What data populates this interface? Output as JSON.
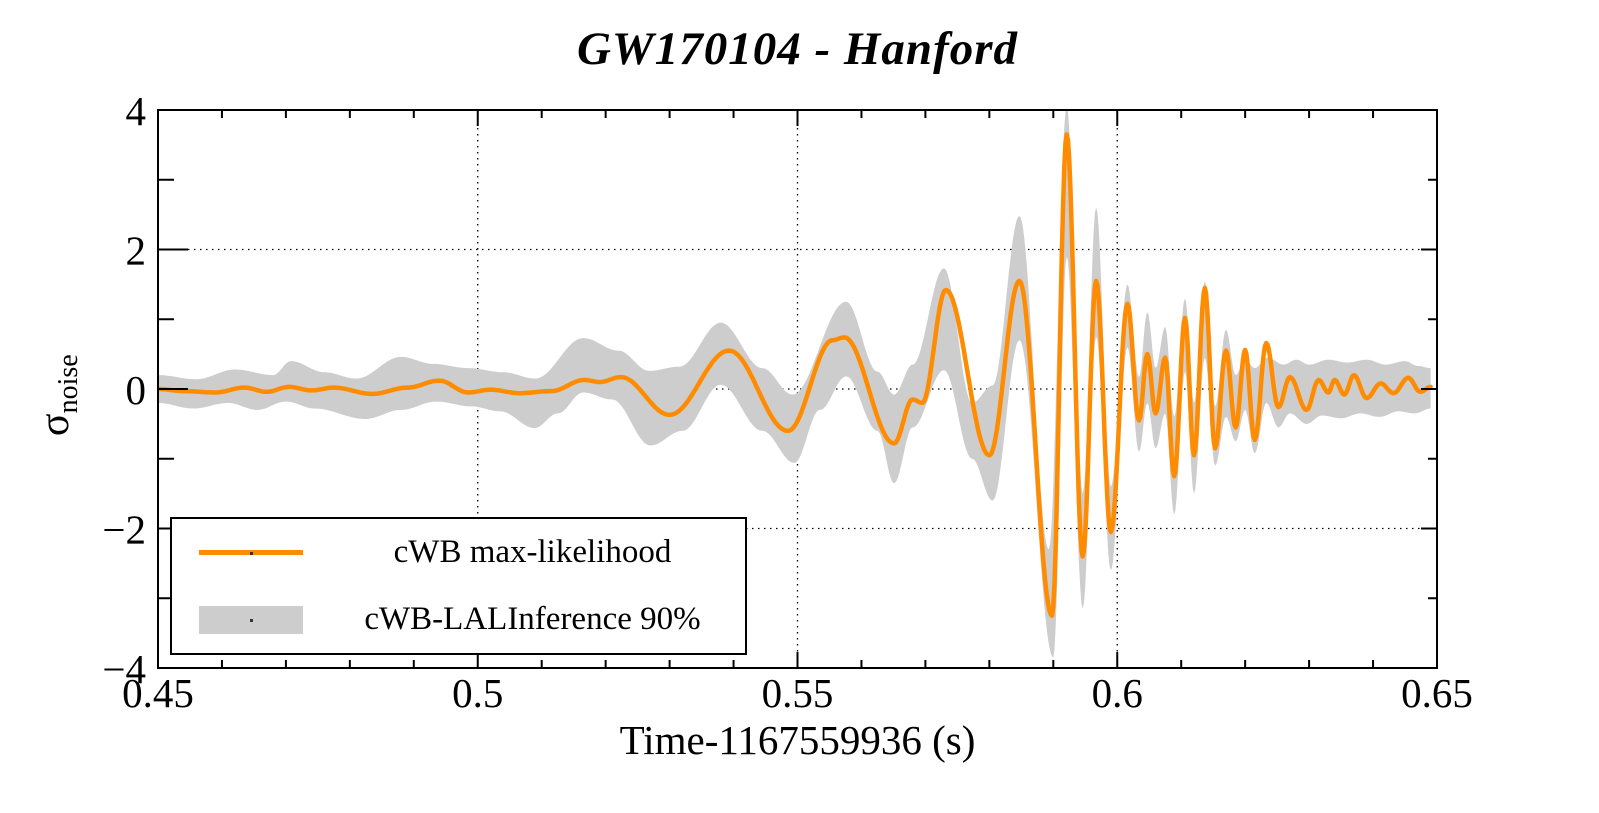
{
  "figure": {
    "title": "GW170104 - Hanford"
  },
  "axes": {
    "x": {
      "title": "Time-1167559936 (s)",
      "range": [
        0.45,
        0.65
      ],
      "major_ticks": [
        {
          "v": 0.45,
          "label": "0.45"
        },
        {
          "v": 0.5,
          "label": "0.5"
        },
        {
          "v": 0.55,
          "label": "0.55"
        },
        {
          "v": 0.6,
          "label": "0.6"
        },
        {
          "v": 0.65,
          "label": "0.65"
        }
      ],
      "minor_step": 0.01,
      "grid_values": [
        0.5,
        0.55,
        0.6
      ]
    },
    "y": {
      "title_symbol": "σ",
      "title_subscript": "noise",
      "range": [
        -4,
        4
      ],
      "major_ticks": [
        {
          "v": 4,
          "label": "4"
        },
        {
          "v": 2,
          "label": "2"
        },
        {
          "v": 0,
          "label": "0"
        },
        {
          "v": -2,
          "label": "−2"
        },
        {
          "v": -4,
          "label": "−4"
        }
      ],
      "minor_step": 1,
      "grid_values": [
        2,
        0,
        -2
      ]
    }
  },
  "legend": {
    "entries": [
      {
        "swatch": "line",
        "color": "#ff8c00",
        "label": "cWB max-likelihood"
      },
      {
        "swatch": "band",
        "color": "#cdcdcd",
        "label": "cWB-LALInference 90%"
      }
    ]
  },
  "colors": {
    "waveform": "#ff8c00",
    "band": "#cdcdcd",
    "axis": "#000000",
    "grid": "#000000",
    "background": "#ffffff"
  },
  "chart_data": {
    "type": "line",
    "title": "GW170104 - Hanford",
    "xlabel": "Time-1167559936 (s)",
    "ylabel": "sigma_noise",
    "x_range": [
      0.45,
      0.65
    ],
    "y_range": [
      -4,
      4
    ],
    "grid": "dotted",
    "legend_position": "bottom-left",
    "representation": "extrema pairs [t_seconds, amplitude_in_noise_sigma]; curve passes smoothly through these points",
    "series": [
      {
        "name": "cWB max-likelihood",
        "style": "line",
        "color": "#ff8c00",
        "extrema": [
          [
            0.45,
            0.0
          ],
          [
            0.454,
            -0.03
          ],
          [
            0.459,
            -0.05
          ],
          [
            0.4635,
            0.02
          ],
          [
            0.467,
            -0.04
          ],
          [
            0.4705,
            0.03
          ],
          [
            0.474,
            -0.02
          ],
          [
            0.4775,
            0.02
          ],
          [
            0.4835,
            -0.07
          ],
          [
            0.489,
            0.02
          ],
          [
            0.494,
            0.12
          ],
          [
            0.4985,
            -0.05
          ],
          [
            0.502,
            -0.01
          ],
          [
            0.5065,
            -0.06
          ],
          [
            0.5115,
            -0.03
          ],
          [
            0.5167,
            0.13
          ],
          [
            0.519,
            0.1
          ],
          [
            0.5224,
            0.17
          ],
          [
            0.53,
            -0.37
          ],
          [
            0.5393,
            0.55
          ],
          [
            0.5485,
            -0.6
          ],
          [
            0.5555,
            0.7
          ],
          [
            0.5573,
            0.74
          ],
          [
            0.5651,
            -0.78
          ],
          [
            0.568,
            -0.15
          ],
          [
            0.5695,
            -0.2
          ],
          [
            0.5732,
            1.42
          ],
          [
            0.58,
            -0.95
          ],
          [
            0.5847,
            1.55
          ],
          [
            0.5898,
            -3.25
          ],
          [
            0.5921,
            3.65
          ],
          [
            0.5946,
            -2.4
          ],
          [
            0.5967,
            1.55
          ],
          [
            0.599,
            -2.05
          ],
          [
            0.6016,
            1.22
          ],
          [
            0.6034,
            -0.45
          ],
          [
            0.6047,
            0.5
          ],
          [
            0.606,
            -0.35
          ],
          [
            0.6075,
            0.45
          ],
          [
            0.6089,
            -1.25
          ],
          [
            0.6106,
            1.02
          ],
          [
            0.612,
            -0.95
          ],
          [
            0.6137,
            1.45
          ],
          [
            0.6153,
            -0.85
          ],
          [
            0.617,
            0.55
          ],
          [
            0.6185,
            -0.55
          ],
          [
            0.62,
            0.56
          ],
          [
            0.6215,
            -0.73
          ],
          [
            0.6233,
            0.66
          ],
          [
            0.6252,
            -0.26
          ],
          [
            0.627,
            0.17
          ],
          [
            0.6296,
            -0.3
          ],
          [
            0.6315,
            0.13
          ],
          [
            0.633,
            -0.05
          ],
          [
            0.634,
            0.13
          ],
          [
            0.6355,
            -0.08
          ],
          [
            0.637,
            0.2
          ],
          [
            0.639,
            -0.13
          ],
          [
            0.6412,
            0.08
          ],
          [
            0.6432,
            -0.06
          ],
          [
            0.6455,
            0.16
          ],
          [
            0.6474,
            -0.04
          ],
          [
            0.649,
            0.03
          ]
        ]
      },
      {
        "name": "cWB-LALInference 90% band upper edge",
        "style": "band-edge",
        "color": "#cdcdcd",
        "extrema": [
          [
            0.45,
            0.2
          ],
          [
            0.456,
            0.14
          ],
          [
            0.462,
            0.28
          ],
          [
            0.468,
            0.2
          ],
          [
            0.4708,
            0.4
          ],
          [
            0.476,
            0.24
          ],
          [
            0.481,
            0.15
          ],
          [
            0.488,
            0.46
          ],
          [
            0.493,
            0.36
          ],
          [
            0.4985,
            0.3
          ],
          [
            0.504,
            0.24
          ],
          [
            0.509,
            0.15
          ],
          [
            0.5165,
            0.73
          ],
          [
            0.522,
            0.55
          ],
          [
            0.5268,
            0.26
          ],
          [
            0.5315,
            0.32
          ],
          [
            0.538,
            0.95
          ],
          [
            0.5445,
            0.3
          ],
          [
            0.5492,
            -0.08
          ],
          [
            0.5576,
            1.25
          ],
          [
            0.5625,
            0.25
          ],
          [
            0.5651,
            -0.08
          ],
          [
            0.568,
            0.35
          ],
          [
            0.5729,
            1.73
          ],
          [
            0.5773,
            -0.2
          ],
          [
            0.5805,
            0.05
          ],
          [
            0.5847,
            2.48
          ],
          [
            0.5893,
            -2.3
          ],
          [
            0.5921,
            4.05
          ],
          [
            0.5946,
            -1.5
          ],
          [
            0.5967,
            2.6
          ],
          [
            0.599,
            -1.4
          ],
          [
            0.6016,
            1.5
          ],
          [
            0.6034,
            0.17
          ],
          [
            0.6047,
            1.1
          ],
          [
            0.606,
            0.3
          ],
          [
            0.6075,
            0.89
          ],
          [
            0.6089,
            -0.4
          ],
          [
            0.6106,
            1.3
          ],
          [
            0.612,
            -0.2
          ],
          [
            0.6137,
            1.55
          ],
          [
            0.6153,
            -0.25
          ],
          [
            0.617,
            0.85
          ],
          [
            0.6185,
            0.2
          ],
          [
            0.62,
            0.42
          ],
          [
            0.6215,
            0.3
          ],
          [
            0.6235,
            0.45
          ],
          [
            0.626,
            0.35
          ],
          [
            0.628,
            0.42
          ],
          [
            0.63,
            0.35
          ],
          [
            0.633,
            0.42
          ],
          [
            0.636,
            0.38
          ],
          [
            0.639,
            0.42
          ],
          [
            0.642,
            0.35
          ],
          [
            0.645,
            0.4
          ],
          [
            0.647,
            0.33
          ],
          [
            0.649,
            0.3
          ]
        ]
      },
      {
        "name": "cWB-LALInference 90% band lower edge",
        "style": "band-edge",
        "color": "#cdcdcd",
        "extrema": [
          [
            0.45,
            -0.2
          ],
          [
            0.4555,
            -0.28
          ],
          [
            0.461,
            -0.2
          ],
          [
            0.4655,
            -0.3
          ],
          [
            0.47,
            -0.18
          ],
          [
            0.4745,
            -0.28
          ],
          [
            0.4824,
            -0.43
          ],
          [
            0.488,
            -0.3
          ],
          [
            0.4935,
            -0.18
          ],
          [
            0.499,
            -0.25
          ],
          [
            0.5035,
            -0.32
          ],
          [
            0.5089,
            -0.56
          ],
          [
            0.5125,
            -0.35
          ],
          [
            0.5165,
            -0.05
          ],
          [
            0.521,
            -0.15
          ],
          [
            0.527,
            -0.81
          ],
          [
            0.532,
            -0.6
          ],
          [
            0.538,
            0.06
          ],
          [
            0.5445,
            -0.6
          ],
          [
            0.5495,
            -1.06
          ],
          [
            0.5535,
            -0.3
          ],
          [
            0.5576,
            0.18
          ],
          [
            0.5625,
            -0.6
          ],
          [
            0.5651,
            -1.35
          ],
          [
            0.568,
            -0.55
          ],
          [
            0.5729,
            0.27
          ],
          [
            0.5773,
            -1.0
          ],
          [
            0.5805,
            -1.6
          ],
          [
            0.5847,
            0.7
          ],
          [
            0.59,
            -3.85
          ],
          [
            0.5921,
            1.9
          ],
          [
            0.5946,
            -3.15
          ],
          [
            0.5967,
            0.75
          ],
          [
            0.599,
            -2.6
          ],
          [
            0.6016,
            0.6
          ],
          [
            0.6034,
            -0.9
          ],
          [
            0.6047,
            -0.2
          ],
          [
            0.606,
            -0.85
          ],
          [
            0.6075,
            -0.35
          ],
          [
            0.6089,
            -1.8
          ],
          [
            0.6106,
            0.25
          ],
          [
            0.612,
            -1.5
          ],
          [
            0.6137,
            0.45
          ],
          [
            0.6153,
            -1.1
          ],
          [
            0.617,
            -0.4
          ],
          [
            0.6185,
            -0.75
          ],
          [
            0.62,
            -0.3
          ],
          [
            0.6215,
            -0.92
          ],
          [
            0.6233,
            -0.2
          ],
          [
            0.6252,
            -0.55
          ],
          [
            0.627,
            -0.35
          ],
          [
            0.6296,
            -0.5
          ],
          [
            0.632,
            -0.38
          ],
          [
            0.635,
            -0.42
          ],
          [
            0.638,
            -0.35
          ],
          [
            0.641,
            -0.4
          ],
          [
            0.644,
            -0.32
          ],
          [
            0.6465,
            -0.35
          ],
          [
            0.649,
            -0.28
          ]
        ]
      }
    ]
  }
}
